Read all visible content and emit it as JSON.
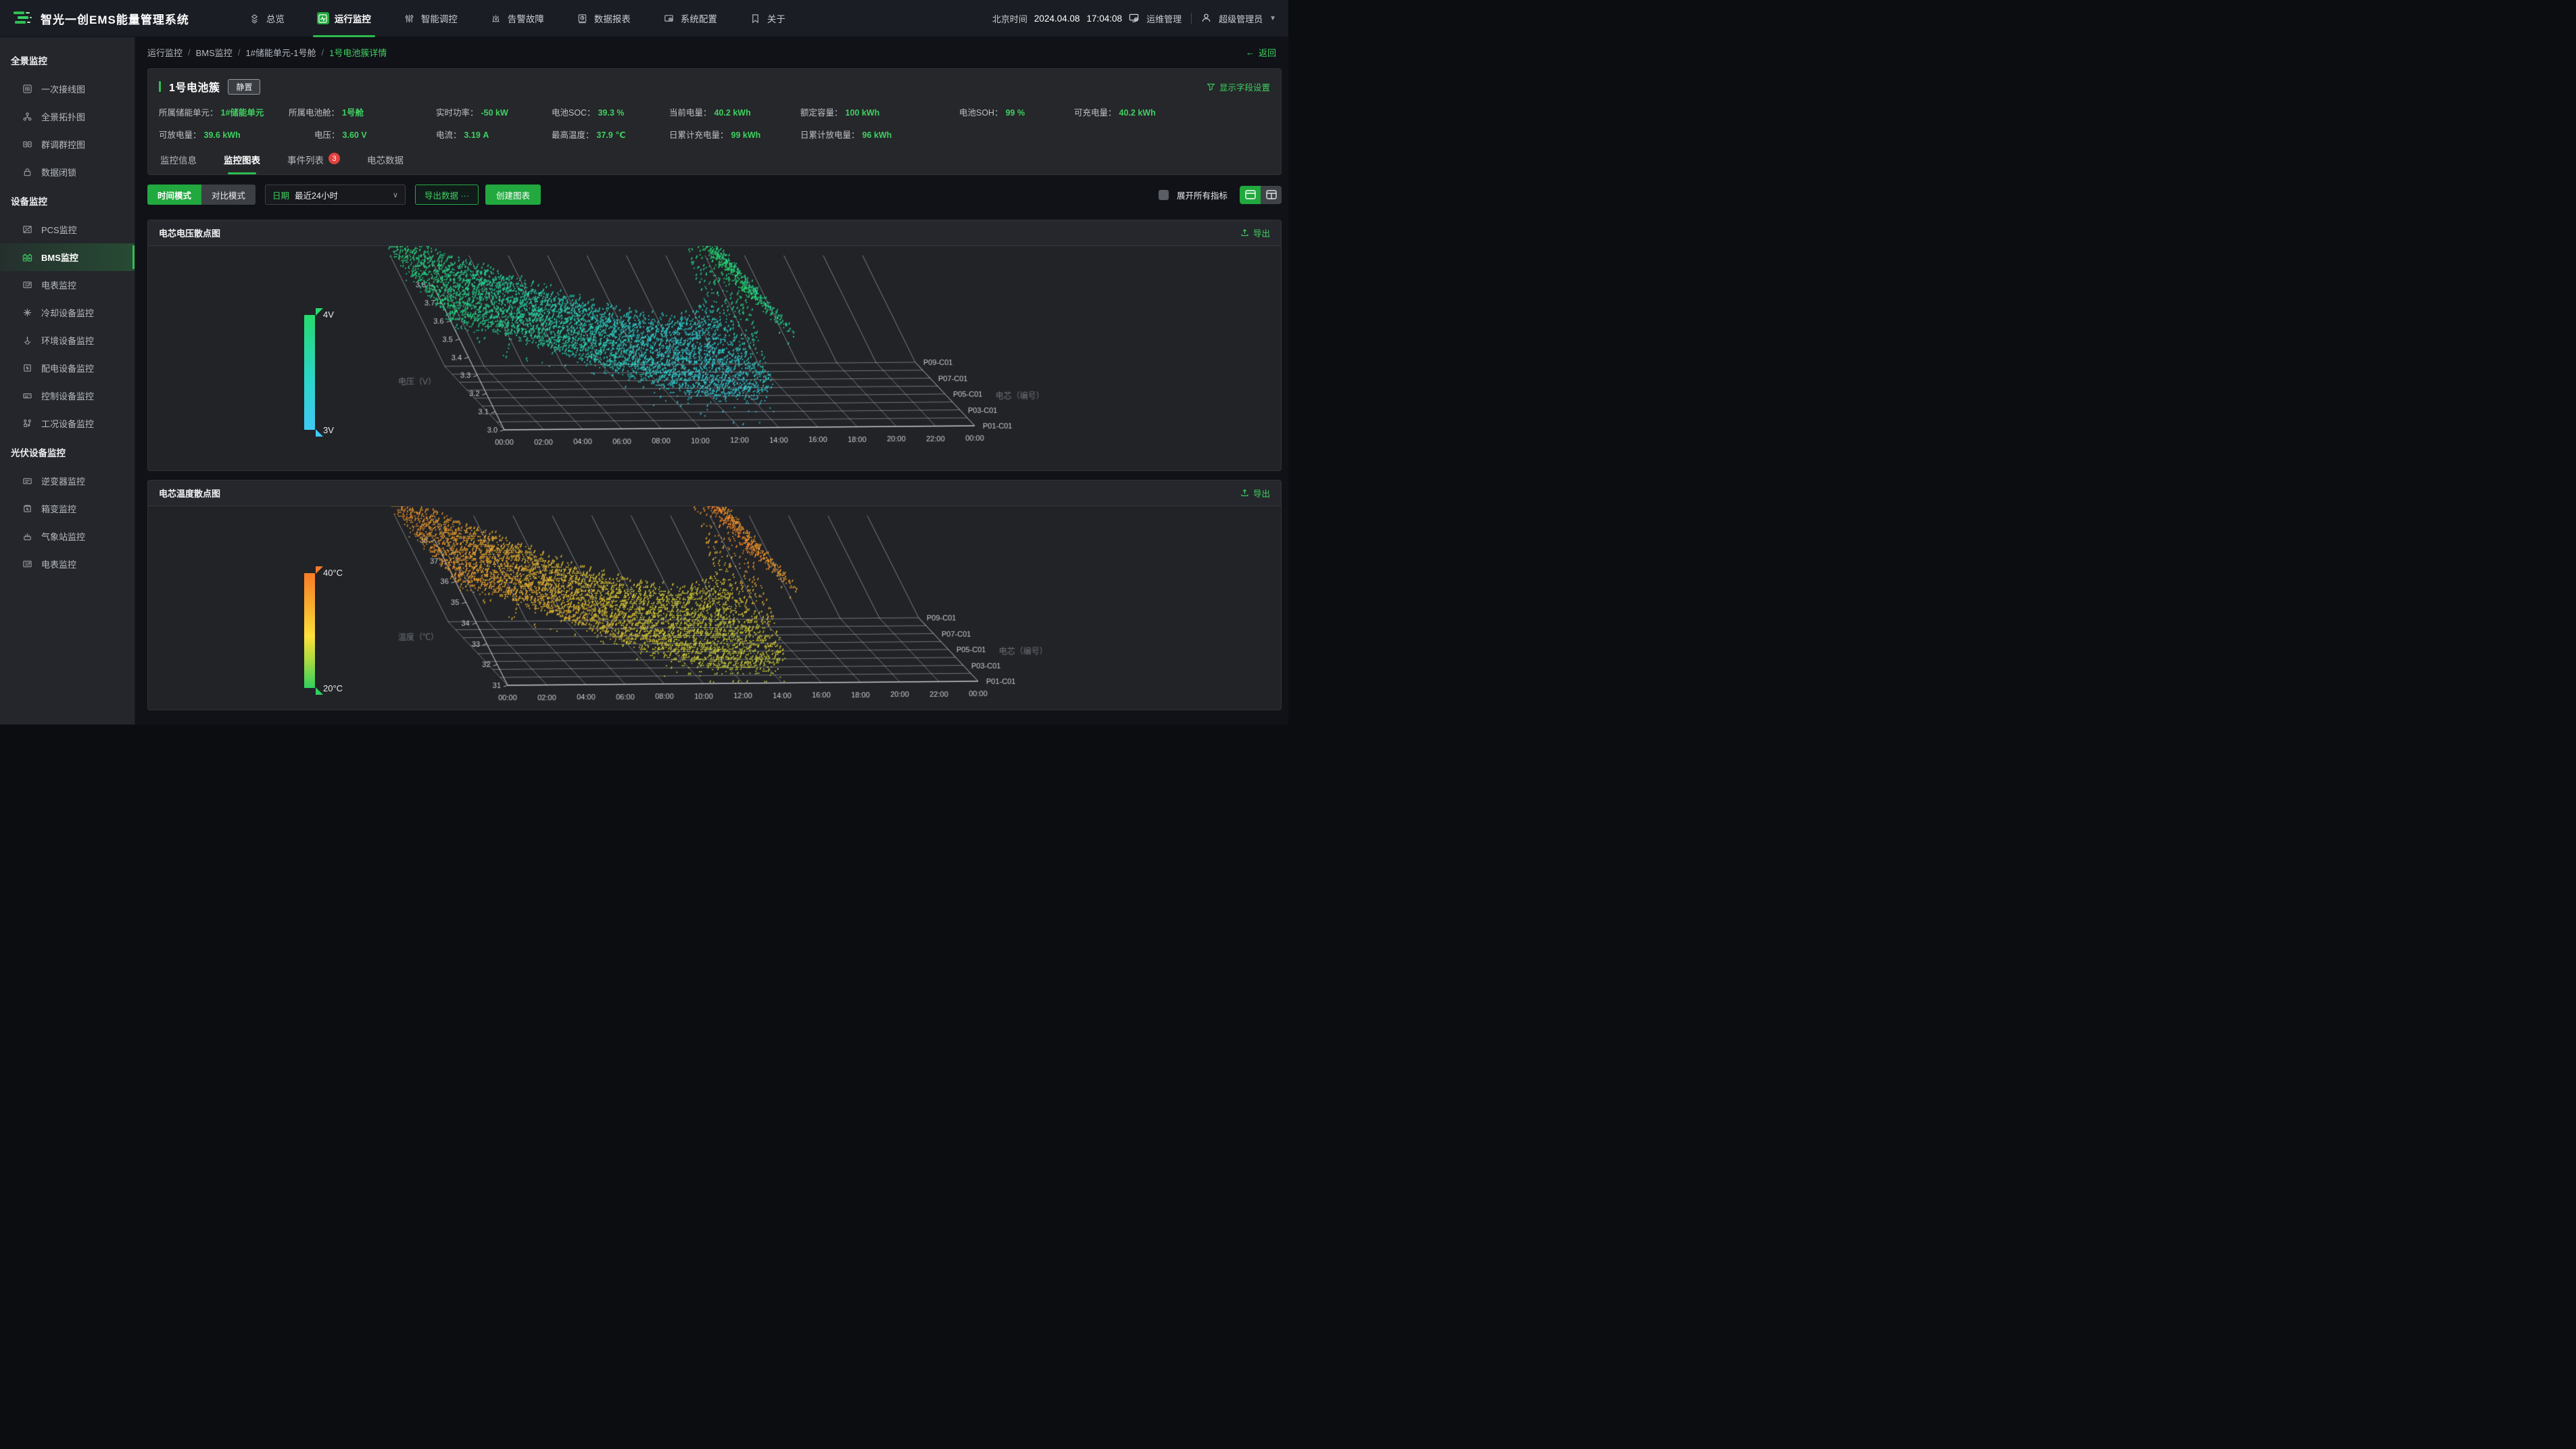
{
  "app": {
    "title": "智光一创EMS能量管理系统"
  },
  "navbar": {
    "items": [
      {
        "key": "overview",
        "label": "总览",
        "active": false
      },
      {
        "key": "monitor",
        "label": "运行监控",
        "active": true
      },
      {
        "key": "dispatch",
        "label": "智能调控",
        "active": false
      },
      {
        "key": "alarm",
        "label": "告警故障",
        "active": false
      },
      {
        "key": "report",
        "label": "数据报表",
        "active": false
      },
      {
        "key": "config",
        "label": "系统配置",
        "active": false
      },
      {
        "key": "about",
        "label": "关于",
        "active": false
      }
    ],
    "time_zone_label": "北京时间",
    "date": "2024.04.08",
    "time": "17:04:08",
    "ops_label": "运维管理",
    "user_label": "超级管理员"
  },
  "sidebar": {
    "sections": [
      {
        "title": "全景监控",
        "items": [
          {
            "icon": "wiring",
            "label": "一次接线图",
            "active": false
          },
          {
            "icon": "topology",
            "label": "全景拓扑图",
            "active": false
          },
          {
            "icon": "cluster",
            "label": "群调群控图",
            "active": false
          },
          {
            "icon": "lock",
            "label": "数据闭锁",
            "active": false
          }
        ]
      },
      {
        "title": "设备监控",
        "items": [
          {
            "icon": "pcs",
            "label": "PCS监控",
            "active": false
          },
          {
            "icon": "battery",
            "label": "BMS监控",
            "active": true
          },
          {
            "icon": "meter",
            "label": "电表监控",
            "active": false
          },
          {
            "icon": "cooling",
            "label": "冷却设备监控",
            "active": false
          },
          {
            "icon": "env",
            "label": "环境设备监控",
            "active": false
          },
          {
            "icon": "power",
            "label": "配电设备监控",
            "active": false
          },
          {
            "icon": "ctrl",
            "label": "控制设备监控",
            "active": false
          },
          {
            "icon": "cond",
            "label": "工况设备监控",
            "active": false
          }
        ]
      },
      {
        "title": "光伏设备监控",
        "items": [
          {
            "icon": "inverter",
            "label": "逆变器监控",
            "active": false
          },
          {
            "icon": "boxtrans",
            "label": "箱变监控",
            "active": false
          },
          {
            "icon": "weather",
            "label": "气象站监控",
            "active": false
          },
          {
            "icon": "meter",
            "label": "电表监控",
            "active": false
          }
        ]
      }
    ]
  },
  "breadcrumb": {
    "items": [
      "运行监控",
      "BMS监控",
      "1#储能单元-1号舱",
      "1号电池簇详情"
    ],
    "back_label": "返回"
  },
  "detail": {
    "title": "1号电池簇",
    "status_badge": "静置",
    "field_settings_label": "显示字段设置",
    "stats_row1": [
      {
        "label": "所属储能单元",
        "value": "1#储能单元"
      },
      {
        "label": "所属电池舱",
        "value": "1号舱"
      },
      {
        "label": "实时功率",
        "value": "-50 kW"
      },
      {
        "label": "电池SOC",
        "value": "39.3 %"
      },
      {
        "label": "当前电量",
        "value": "40.2 kWh"
      },
      {
        "label": "额定容量",
        "value": "100 kWh"
      },
      {
        "label": "电池SOH",
        "value": "99 %"
      },
      {
        "label": "可充电量",
        "value": "40.2 kWh"
      }
    ],
    "stats_row2": [
      {
        "label": "可放电量",
        "value": "39.6 kWh"
      },
      {
        "label": "电压",
        "value": "3.60 V"
      },
      {
        "label": "电流",
        "value": "3.19 A"
      },
      {
        "label": "最高温度",
        "value": "37.9 ℃"
      },
      {
        "label": "日累计充电量",
        "value": "99 kWh"
      },
      {
        "label": "日累计放电量",
        "value": "96 kWh"
      }
    ],
    "tabs": [
      {
        "label": "监控信息",
        "active": false
      },
      {
        "label": "监控图表",
        "active": true
      },
      {
        "label": "事件列表",
        "active": false,
        "badge": "3"
      },
      {
        "label": "电芯数据",
        "active": false
      }
    ]
  },
  "toolbar": {
    "mode_time": "时间模式",
    "mode_compare": "对比模式",
    "date_label": "日期",
    "date_value": "最近24小时",
    "export_data_label": "导出数据 ···",
    "create_chart_label": "创建图表",
    "expand_all_label": "展开所有指标"
  },
  "chart_data": [
    {
      "type": "scatter",
      "title": "电芯电压散点图",
      "export_label": "导出",
      "x_ticks": [
        "00:00",
        "02:00",
        "04:00",
        "06:00",
        "08:00",
        "10:00",
        "12:00",
        "14:00",
        "16:00",
        "18:00",
        "20:00",
        "22:00",
        "00:00"
      ],
      "ylabel": "电压（V）",
      "ylim": [
        3.0,
        3.8
      ],
      "y_ticks": [
        "3.0",
        "3.1",
        "3.2",
        "3.3",
        "3.4",
        "3.5",
        "3.6",
        "3.7",
        "3.8"
      ],
      "z_label": "电芯（编号）",
      "z_tick_labels": [
        "P01-C01",
        "P03-C01",
        "P05-C01",
        "P07-C01",
        "P09-C01"
      ],
      "series_count": 9,
      "grid": true,
      "legend_position": "left",
      "colorbar": {
        "top_label": "4V",
        "bottom_label": "3V",
        "range": [
          3,
          4
        ]
      },
      "point_color_stops": [
        [
          0,
          "#3fc8f8"
        ],
        [
          0.4,
          "#2bd6c6"
        ],
        [
          0.75,
          "#27da8b"
        ],
        [
          1,
          "#25dc66"
        ]
      ],
      "profile": {
        "hours": [
          0,
          1,
          2,
          3,
          4,
          5,
          6,
          7,
          8,
          9,
          10,
          11,
          12,
          13,
          14,
          14.8,
          15.2,
          15.6,
          16,
          16.5,
          17.1
        ],
        "values": [
          3.64,
          3.62,
          3.585,
          3.55,
          3.51,
          3.465,
          3.42,
          3.375,
          3.33,
          3.285,
          3.25,
          3.225,
          3.21,
          3.2,
          3.22,
          3.3,
          3.55,
          3.79,
          3.72,
          3.64,
          3.56
        ]
      },
      "data_end_hour": 17.1,
      "jitter": 0.075,
      "series_spread": 0.006,
      "quantize": 0.01
    },
    {
      "type": "scatter",
      "title": "电芯温度散点图",
      "export_label": "导出",
      "x_ticks": [
        "00:00",
        "02:00",
        "04:00",
        "06:00",
        "08:00",
        "10:00",
        "12:00",
        "14:00",
        "16:00",
        "18:00",
        "20:00",
        "22:00",
        "00:00"
      ],
      "ylabel": "温度（℃）",
      "ylim": [
        31,
        38
      ],
      "y_ticks": [
        "31",
        "32",
        "33",
        "34",
        "35",
        "36",
        "37",
        "38"
      ],
      "z_label": "电芯（编号）",
      "z_tick_labels": [
        "P01-C01",
        "P03-C01",
        "P05-C01",
        "P07-C01",
        "P09-C01"
      ],
      "series_count": 9,
      "grid": true,
      "legend_position": "left",
      "colorbar": {
        "top_label": "40°C",
        "bottom_label": "20°C",
        "range": [
          20,
          40
        ]
      },
      "point_color_stops": [
        [
          0,
          "#c9dc3a"
        ],
        [
          0.45,
          "#f2c231"
        ],
        [
          0.8,
          "#f9992c"
        ],
        [
          1,
          "#fb7d26"
        ]
      ],
      "profile": {
        "hours": [
          0,
          1,
          2,
          3,
          4,
          5,
          6,
          7,
          8,
          9,
          10,
          11,
          12,
          13,
          14,
          14.8,
          15.2,
          15.6,
          16,
          16.5,
          17.1
        ],
        "values": [
          36.4,
          36.1,
          35.7,
          35.3,
          34.9,
          34.4,
          34.0,
          33.5,
          33.1,
          32.7,
          32.4,
          32.2,
          32.05,
          32.0,
          32.2,
          32.8,
          34.5,
          37.8,
          37.3,
          36.6,
          35.9
        ]
      },
      "data_end_hour": 17.1,
      "jitter": 0.6,
      "series_spread": 0.07,
      "quantize": 0.1
    }
  ]
}
